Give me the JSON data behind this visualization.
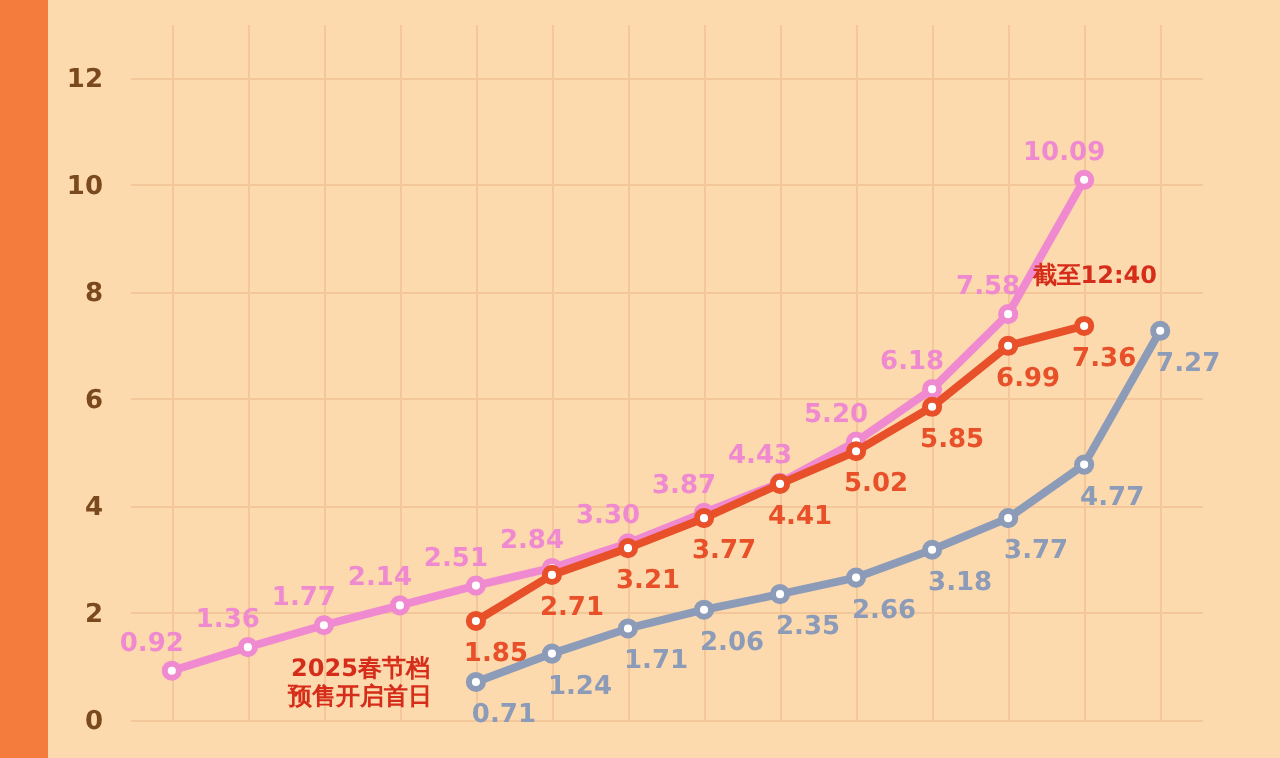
{
  "chart_data": {
    "type": "line",
    "categories": [
      null,
      null,
      null,
      null,
      null,
      null,
      null,
      null,
      null,
      null,
      null,
      null,
      null,
      null
    ],
    "series": [
      {
        "color": "#f08ad0",
        "values": [
          0.92,
          1.36,
          1.77,
          2.14,
          2.51,
          2.84,
          3.3,
          3.87,
          4.43,
          5.2,
          6.18,
          7.58,
          10.09,
          null
        ],
        "value_labels": [
          "0.92",
          "1.36",
          "1.77",
          "2.14",
          "2.51",
          "2.84",
          "3.30",
          "3.87",
          "4.43",
          "5.20",
          "6.18",
          "7.58",
          "10.09",
          null
        ]
      },
      {
        "color": "#e8502a",
        "values": [
          null,
          null,
          null,
          null,
          1.85,
          2.71,
          3.21,
          3.77,
          4.41,
          5.02,
          5.85,
          6.99,
          7.36,
          null
        ],
        "value_labels": [
          null,
          null,
          null,
          null,
          "1.85",
          "2.71",
          "3.21",
          "3.77",
          "4.41",
          "5.02",
          "5.85",
          "6.99",
          "7.36",
          null
        ]
      },
      {
        "color": "#8c9bb8",
        "values": [
          null,
          null,
          null,
          null,
          0.71,
          1.24,
          1.71,
          2.06,
          2.35,
          2.66,
          3.18,
          3.77,
          4.77,
          7.27
        ],
        "value_labels": [
          null,
          null,
          null,
          null,
          "0.71",
          "1.24",
          "1.71",
          "2.06",
          "2.35",
          "2.66",
          "3.18",
          "3.77",
          "4.77",
          "7.27"
        ]
      }
    ],
    "ylim": [
      0,
      13
    ],
    "yticks": [
      0,
      2,
      4,
      6,
      8,
      10,
      12
    ],
    "tick_labels": "y",
    "grid": true,
    "marker": "circle",
    "line_style": "solid",
    "annotations": [
      "2025春节档预售开启首日",
      "截至12:40"
    ]
  }
}
